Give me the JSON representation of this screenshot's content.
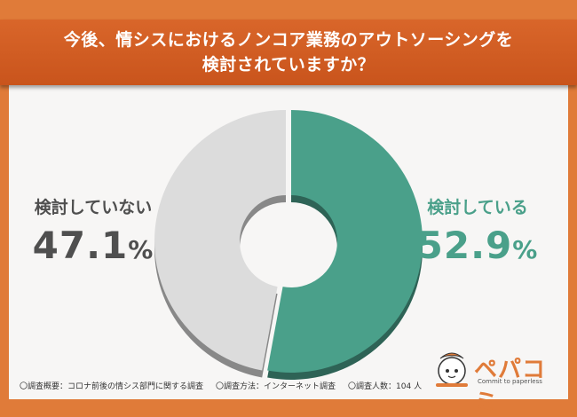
{
  "title": {
    "line1": "今後、情シスにおけるノンコア業務のアウトソーシングを",
    "line2": "検討されていますか？"
  },
  "chart_data": {
    "type": "pie",
    "donut": true,
    "slices": [
      {
        "label": "検討している",
        "value": 52.9,
        "color": "#4aa08a"
      },
      {
        "label": "検討していない",
        "value": 47.1,
        "color": "#dcdcdc"
      }
    ]
  },
  "labels": {
    "left": {
      "name": "検討していない",
      "pct": "47.1",
      "unit": "%"
    },
    "right": {
      "name": "検討している",
      "pct": "52.9",
      "unit": "%"
    }
  },
  "footer": {
    "item1": "〇調査概要：コロナ前後の情シス部門に関する調査",
    "item2": "〇調査方法：インターネット調査",
    "item3": "〇調査人数：104 人"
  },
  "logo": {
    "name": "ペパコミ",
    "tagline": "Commit to paperless",
    "brand_color": "#e07b39"
  }
}
